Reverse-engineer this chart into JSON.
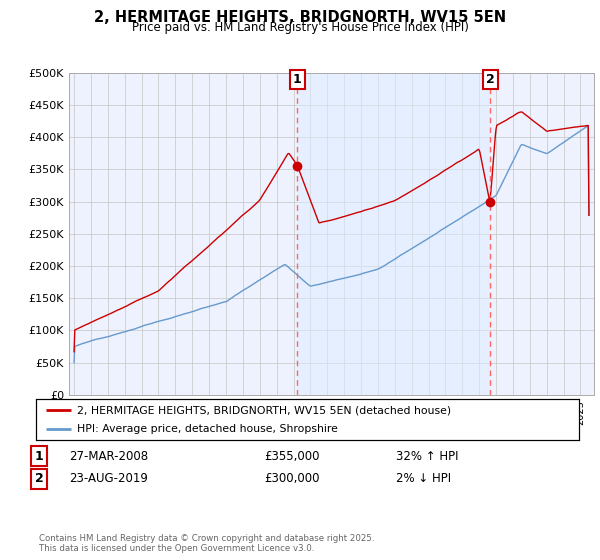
{
  "title": "2, HERMITAGE HEIGHTS, BRIDGNORTH, WV15 5EN",
  "subtitle": "Price paid vs. HM Land Registry's House Price Index (HPI)",
  "legend_line1": "2, HERMITAGE HEIGHTS, BRIDGNORTH, WV15 5EN (detached house)",
  "legend_line2": "HPI: Average price, detached house, Shropshire",
  "annotation1_label": "1",
  "annotation1_date": "27-MAR-2008",
  "annotation1_price": "£355,000",
  "annotation1_hpi": "32% ↑ HPI",
  "annotation2_label": "2",
  "annotation2_date": "23-AUG-2019",
  "annotation2_price": "£300,000",
  "annotation2_hpi": "2% ↓ HPI",
  "footer": "Contains HM Land Registry data © Crown copyright and database right 2025.\nThis data is licensed under the Open Government Licence v3.0.",
  "red_color": "#cc0000",
  "blue_color": "#6699cc",
  "blue_fill_color": "#ddeeff",
  "vline_color": "#ff6666",
  "grid_color": "#cccccc",
  "background_color": "#eef2ff",
  "ylim": [
    0,
    500000
  ],
  "yticks": [
    0,
    50000,
    100000,
    150000,
    200000,
    250000,
    300000,
    350000,
    400000,
    450000,
    500000
  ],
  "xlim_start": 1994.7,
  "xlim_end": 2025.8,
  "sale1_x": 2008.23,
  "sale1_y": 355000,
  "sale2_x": 2019.64,
  "sale2_y": 300000
}
